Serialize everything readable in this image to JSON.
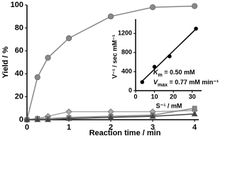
{
  "chart_data": [
    {
      "type": "line",
      "x_label": "Reaction time / min",
      "y_label": "Yield / %",
      "xlim": [
        0,
        4.1
      ],
      "ylim": [
        0,
        100
      ],
      "xticks": [
        0,
        1,
        2,
        3,
        4
      ],
      "yticks": [
        0,
        20,
        40,
        60,
        80,
        100
      ],
      "series": [
        {
          "marker": "circle",
          "color": "#888888",
          "x": [
            0,
            0.25,
            0.5,
            1,
            2,
            3,
            4
          ],
          "values": [
            0,
            37,
            54,
            71,
            90,
            98,
            99
          ]
        },
        {
          "marker": "diamond",
          "color": "#aaaaaa",
          "x": [
            0,
            0.25,
            0.5,
            1,
            2,
            3,
            4
          ],
          "values": [
            0,
            1,
            3,
            7,
            7,
            7,
            8
          ]
        },
        {
          "marker": "square",
          "color": "#888888",
          "x": [
            0,
            0.25,
            0.5,
            1,
            2,
            3,
            4
          ],
          "values": [
            0,
            1,
            1,
            2,
            3,
            4,
            10
          ]
        },
        {
          "marker": "triangle",
          "color": "#444444",
          "x": [
            0,
            0.25,
            0.5,
            1,
            2,
            3,
            4
          ],
          "values": [
            0,
            0,
            0,
            1,
            2,
            3,
            5
          ]
        }
      ]
    },
    {
      "type": "scatter",
      "x_label": "S⁻¹ / mM",
      "y_label": "V⁻¹ / sec mM⁻¹",
      "xlim": [
        0,
        35
      ],
      "ylim": [
        0,
        1500
      ],
      "xticks": [
        0,
        10,
        20,
        30
      ],
      "yticks": [
        0,
        400,
        800,
        1200
      ],
      "color": "#000000",
      "fit": true,
      "x": [
        3.5,
        10,
        18,
        32
      ],
      "values": [
        180,
        500,
        720,
        1300
      ],
      "annotations": [
        {
          "symbol": "K",
          "subscript": "m",
          "text": " = 0.50 mM"
        },
        {
          "symbol": "V",
          "subscript": "max",
          "text": " = 0.77 mM min⁻¹"
        }
      ]
    }
  ]
}
